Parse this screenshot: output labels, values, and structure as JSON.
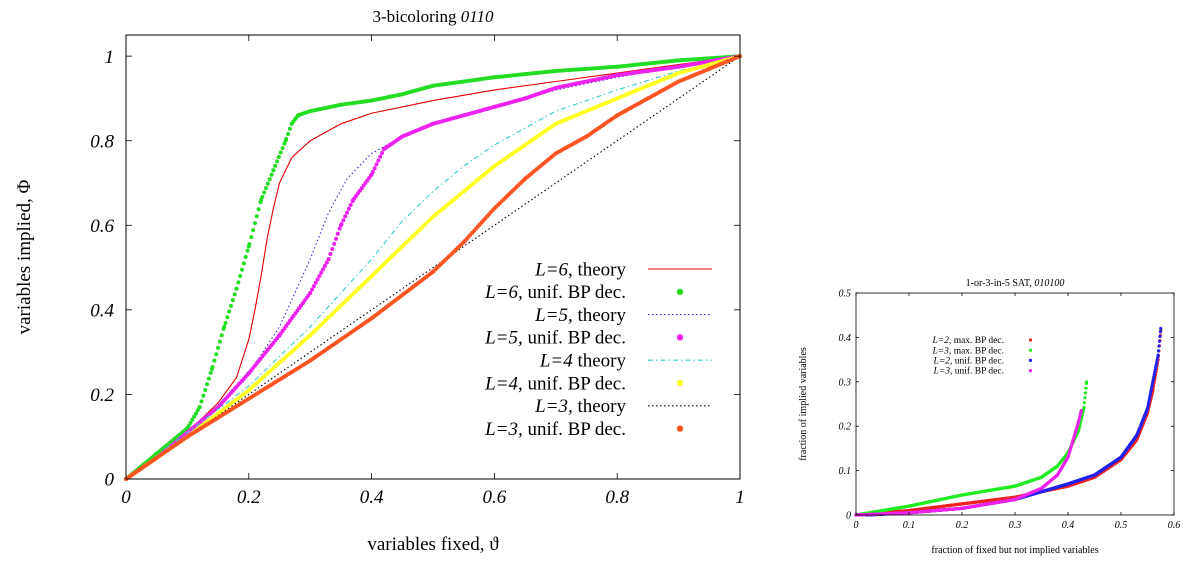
{
  "chart_data": [
    {
      "type": "line",
      "title": {
        "prefix": "3-bicoloring ",
        "emph": "0110"
      },
      "xlabel": "variables fixed, ϑ",
      "ylabel": "variables implied, Φ",
      "xlim": [
        0,
        1
      ],
      "ylim": [
        0,
        1.05
      ],
      "x_ticks": [
        "0",
        "0.2",
        "0.4",
        "0.6",
        "0.8",
        "1"
      ],
      "y_ticks": [
        "0",
        "0.2",
        "0.4",
        "0.6",
        "0.8",
        "1"
      ],
      "grid": false,
      "legend_position": "bottom-right",
      "series": [
        {
          "name": "L=6, theory",
          "name_emph": "L=6,",
          "name_rest": " theory",
          "style": "line",
          "color": "#e00000",
          "points": [
            [
              0,
              0
            ],
            [
              0.05,
              0.05
            ],
            [
              0.1,
              0.11
            ],
            [
              0.15,
              0.18
            ],
            [
              0.18,
              0.24
            ],
            [
              0.2,
              0.33
            ],
            [
              0.21,
              0.4
            ],
            [
              0.22,
              0.48
            ],
            [
              0.23,
              0.57
            ],
            [
              0.24,
              0.64
            ],
            [
              0.25,
              0.7
            ],
            [
              0.27,
              0.76
            ],
            [
              0.3,
              0.8
            ],
            [
              0.35,
              0.84
            ],
            [
              0.4,
              0.865
            ],
            [
              0.5,
              0.895
            ],
            [
              0.6,
              0.92
            ],
            [
              0.7,
              0.94
            ],
            [
              0.8,
              0.96
            ],
            [
              0.9,
              0.98
            ],
            [
              1,
              1
            ]
          ]
        },
        {
          "name": "L=6, unif. BP dec.",
          "name_emph": "L=6,",
          "name_rest": " unif. BP dec.",
          "style": "points",
          "color": "#22dd22",
          "points": [
            [
              0,
              0
            ],
            [
              0.05,
              0.06
            ],
            [
              0.1,
              0.12
            ],
            [
              0.12,
              0.17
            ],
            [
              0.14,
              0.26
            ],
            [
              0.16,
              0.36
            ],
            [
              0.18,
              0.45
            ],
            [
              0.2,
              0.55
            ],
            [
              0.22,
              0.66
            ],
            [
              0.24,
              0.73
            ],
            [
              0.26,
              0.8
            ],
            [
              0.27,
              0.84
            ],
            [
              0.28,
              0.86
            ],
            [
              0.3,
              0.87
            ],
            [
              0.35,
              0.885
            ],
            [
              0.4,
              0.895
            ],
            [
              0.45,
              0.91
            ],
            [
              0.5,
              0.93
            ],
            [
              0.6,
              0.95
            ],
            [
              0.7,
              0.965
            ],
            [
              0.8,
              0.975
            ],
            [
              0.9,
              0.99
            ],
            [
              1,
              1
            ]
          ]
        },
        {
          "name": "L=5, theory",
          "name_emph": "L=5,",
          "name_rest": " theory",
          "style": "dotted",
          "color": "#3030cc",
          "points": [
            [
              0,
              0
            ],
            [
              0.05,
              0.05
            ],
            [
              0.1,
              0.11
            ],
            [
              0.15,
              0.17
            ],
            [
              0.2,
              0.25
            ],
            [
              0.25,
              0.36
            ],
            [
              0.3,
              0.52
            ],
            [
              0.33,
              0.63
            ],
            [
              0.36,
              0.71
            ],
            [
              0.4,
              0.77
            ],
            [
              0.45,
              0.81
            ],
            [
              0.5,
              0.84
            ],
            [
              0.6,
              0.88
            ],
            [
              0.7,
              0.92
            ],
            [
              0.8,
              0.95
            ],
            [
              0.9,
              0.975
            ],
            [
              1,
              1
            ]
          ]
        },
        {
          "name": "L=5, unif. BP dec.",
          "name_emph": "L=5,",
          "name_rest": " unif. BP dec.",
          "style": "points",
          "color": "#ee22ee",
          "points": [
            [
              0,
              0
            ],
            [
              0.05,
              0.05
            ],
            [
              0.1,
              0.11
            ],
            [
              0.15,
              0.17
            ],
            [
              0.2,
              0.25
            ],
            [
              0.25,
              0.34
            ],
            [
              0.3,
              0.44
            ],
            [
              0.33,
              0.52
            ],
            [
              0.35,
              0.6
            ],
            [
              0.37,
              0.66
            ],
            [
              0.4,
              0.72
            ],
            [
              0.42,
              0.78
            ],
            [
              0.45,
              0.81
            ],
            [
              0.5,
              0.84
            ],
            [
              0.55,
              0.86
            ],
            [
              0.6,
              0.88
            ],
            [
              0.65,
              0.9
            ],
            [
              0.7,
              0.925
            ],
            [
              0.75,
              0.94
            ],
            [
              0.8,
              0.955
            ],
            [
              0.85,
              0.965
            ],
            [
              0.9,
              0.975
            ],
            [
              1,
              1
            ]
          ]
        },
        {
          "name": "L=4 theory",
          "name_emph": "L=4",
          "name_rest": " theory",
          "style": "dashdot",
          "color": "#33cccc",
          "points": [
            [
              0,
              0
            ],
            [
              0.1,
              0.11
            ],
            [
              0.2,
              0.22
            ],
            [
              0.3,
              0.36
            ],
            [
              0.4,
              0.52
            ],
            [
              0.45,
              0.61
            ],
            [
              0.5,
              0.68
            ],
            [
              0.55,
              0.74
            ],
            [
              0.6,
              0.79
            ],
            [
              0.65,
              0.83
            ],
            [
              0.7,
              0.87
            ],
            [
              0.8,
              0.92
            ],
            [
              0.9,
              0.965
            ],
            [
              1,
              1
            ]
          ]
        },
        {
          "name": "L=4, unif. BP dec.",
          "name_emph": "L=4,",
          "name_rest": " unif. BP dec.",
          "style": "points",
          "color": "#ffff22",
          "points": [
            [
              0,
              0
            ],
            [
              0.1,
              0.1
            ],
            [
              0.2,
              0.21
            ],
            [
              0.3,
              0.34
            ],
            [
              0.4,
              0.48
            ],
            [
              0.5,
              0.62
            ],
            [
              0.55,
              0.68
            ],
            [
              0.6,
              0.74
            ],
            [
              0.65,
              0.79
            ],
            [
              0.7,
              0.84
            ],
            [
              0.75,
              0.87
            ],
            [
              0.8,
              0.9
            ],
            [
              0.85,
              0.93
            ],
            [
              0.9,
              0.96
            ],
            [
              1,
              1
            ]
          ]
        },
        {
          "name": "L=3, theory",
          "name_emph": "L=3,",
          "name_rest": " theory",
          "style": "dotted",
          "color": "#000000",
          "points": [
            [
              0,
              0
            ],
            [
              0.2,
              0.2
            ],
            [
              0.4,
              0.4
            ],
            [
              0.6,
              0.6
            ],
            [
              0.8,
              0.8
            ],
            [
              1,
              1
            ]
          ]
        },
        {
          "name": "L=3, unif. BP dec.",
          "name_emph": "L=3,",
          "name_rest": " unif. BP dec.",
          "style": "points",
          "color": "#ff5522",
          "points": [
            [
              0,
              0
            ],
            [
              0.1,
              0.1
            ],
            [
              0.2,
              0.19
            ],
            [
              0.3,
              0.28
            ],
            [
              0.4,
              0.38
            ],
            [
              0.5,
              0.49
            ],
            [
              0.55,
              0.56
            ],
            [
              0.6,
              0.64
            ],
            [
              0.65,
              0.71
            ],
            [
              0.7,
              0.77
            ],
            [
              0.75,
              0.81
            ],
            [
              0.8,
              0.86
            ],
            [
              0.85,
              0.9
            ],
            [
              0.9,
              0.94
            ],
            [
              0.95,
              0.97
            ],
            [
              1,
              1
            ]
          ]
        }
      ]
    },
    {
      "type": "line",
      "title": {
        "prefix": "1-or-3-in-5 SAT, ",
        "emph": "010100"
      },
      "xlabel": "fraction of fixed but not implied variables",
      "ylabel": "fraction of implied variables",
      "xlim": [
        0,
        0.6
      ],
      "ylim": [
        0,
        0.5
      ],
      "x_ticks": [
        "0",
        "0.1",
        "0.2",
        "0.3",
        "0.4",
        "0.5",
        "0.6"
      ],
      "y_ticks": [
        "0",
        "0.1",
        "0.2",
        "0.3",
        "0.4",
        "0.5"
      ],
      "grid": false,
      "legend_position": "top-left",
      "series": [
        {
          "name": "L=2, max. BP dec.",
          "name_emph": "L=2,",
          "name_rest": " max. BP dec.",
          "style": "points",
          "color": "#ee2222",
          "points": [
            [
              0,
              0
            ],
            [
              0.1,
              0.01
            ],
            [
              0.2,
              0.025
            ],
            [
              0.3,
              0.04
            ],
            [
              0.4,
              0.065
            ],
            [
              0.45,
              0.085
            ],
            [
              0.5,
              0.125
            ],
            [
              0.53,
              0.17
            ],
            [
              0.55,
              0.23
            ],
            [
              0.56,
              0.28
            ],
            [
              0.57,
              0.35
            ],
            [
              0.575,
              0.415
            ]
          ]
        },
        {
          "name": "L=3, max. BP dec.",
          "name_emph": "L=3,",
          "name_rest": " max. BP dec.",
          "style": "points",
          "color": "#22ee22",
          "points": [
            [
              0,
              0
            ],
            [
              0.05,
              0.01
            ],
            [
              0.1,
              0.02
            ],
            [
              0.2,
              0.045
            ],
            [
              0.3,
              0.065
            ],
            [
              0.35,
              0.085
            ],
            [
              0.38,
              0.11
            ],
            [
              0.4,
              0.14
            ],
            [
              0.42,
              0.19
            ],
            [
              0.43,
              0.24
            ],
            [
              0.435,
              0.3
            ]
          ]
        },
        {
          "name": "L=2, unif. BP dec.",
          "name_emph": "L=2,",
          "name_rest": " unif. BP dec.",
          "style": "points",
          "color": "#2222ee",
          "points": [
            [
              0.02,
              0
            ],
            [
              0.1,
              0.005
            ],
            [
              0.2,
              0.015
            ],
            [
              0.3,
              0.035
            ],
            [
              0.4,
              0.07
            ],
            [
              0.45,
              0.09
            ],
            [
              0.5,
              0.13
            ],
            [
              0.53,
              0.18
            ],
            [
              0.55,
              0.24
            ],
            [
              0.56,
              0.3
            ],
            [
              0.57,
              0.36
            ],
            [
              0.575,
              0.42
            ]
          ]
        },
        {
          "name": "L=3, unif. BP dec.",
          "name_emph": "L=3,",
          "name_rest": " unif. BP dec.",
          "style": "points",
          "color": "#ee22ee",
          "points": [
            [
              0,
              0
            ],
            [
              0.1,
              0.005
            ],
            [
              0.2,
              0.015
            ],
            [
              0.3,
              0.035
            ],
            [
              0.35,
              0.06
            ],
            [
              0.38,
              0.09
            ],
            [
              0.4,
              0.13
            ],
            [
              0.41,
              0.17
            ],
            [
              0.42,
              0.21
            ],
            [
              0.425,
              0.235
            ]
          ]
        }
      ]
    }
  ]
}
